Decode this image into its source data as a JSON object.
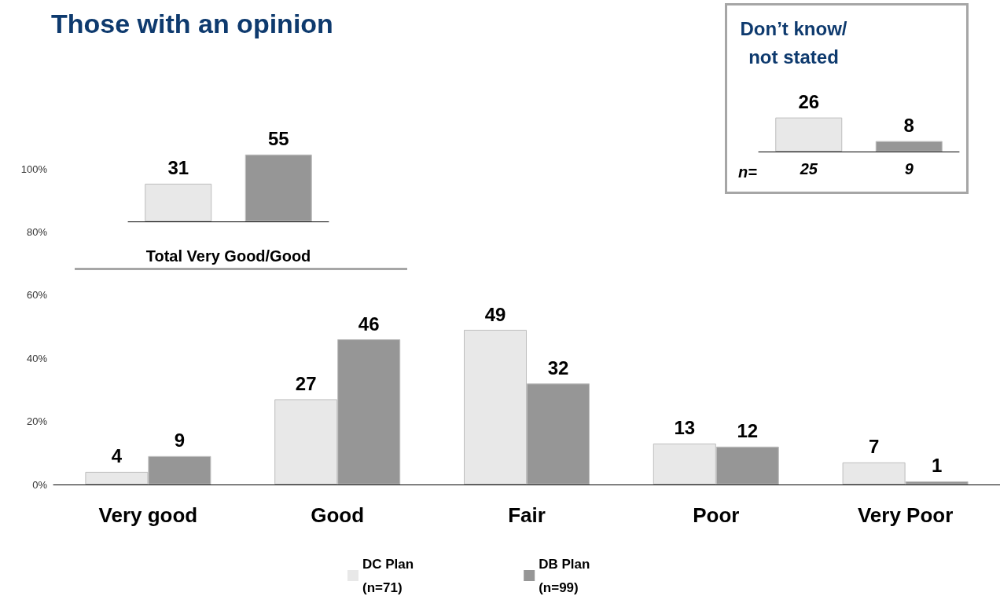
{
  "chart_data": [
    {
      "type": "other",
      "title": "Those with an opinion"
    },
    {
      "type": "bar",
      "categories": [
        "Very good",
        "Good",
        "Fair",
        "Poor",
        "Very Poor"
      ],
      "series": [
        {
          "name": "DC Plan\n(n=71)",
          "color": "#e8e8e8",
          "values": [
            4,
            27,
            49,
            13,
            7
          ]
        },
        {
          "name": "DB Plan\n(n=99)",
          "color": "#969696",
          "values": [
            9,
            46,
            32,
            12,
            1
          ]
        }
      ],
      "ylim": [
        0,
        100
      ],
      "yticks": [
        {
          "value": 0,
          "label": "0%"
        },
        {
          "value": 20,
          "label": "20%"
        },
        {
          "value": 40,
          "label": "40%"
        },
        {
          "value": 60,
          "label": "60%"
        },
        {
          "value": 80,
          "label": "80%"
        },
        {
          "value": 100,
          "label": "100%"
        }
      ],
      "data_labels": true,
      "legend": "bottom"
    },
    {
      "type": "bar",
      "xlabel": "Total Very Good/Good",
      "categories": [
        null,
        null
      ],
      "values": [
        31,
        55
      ],
      "colors": [
        "#e8e8e8",
        "#969696"
      ],
      "data_labels": true,
      "tick_labels": "x"
    },
    {
      "type": "bar",
      "title": "Don’t know/\nnot stated",
      "categories": [
        "25",
        "9"
      ],
      "values": [
        26,
        8
      ],
      "colors": [
        "#e8e8e8",
        "#969696"
      ],
      "annotations": [
        "n="
      ],
      "data_labels": true,
      "tick_labels": "x"
    }
  ]
}
